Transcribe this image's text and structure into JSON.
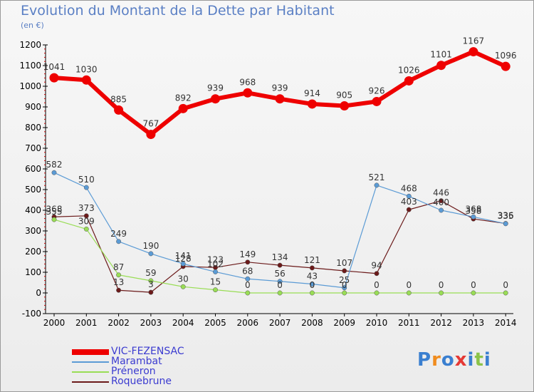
{
  "title": "Evolution du Montant de la Dette par Habitant",
  "unit": "(en €)",
  "logo_text": "Proxiti",
  "chart_data": {
    "type": "line",
    "x": [
      "2000",
      "2001",
      "2002",
      "2003",
      "2004",
      "2005",
      "2006",
      "2007",
      "2008",
      "2009",
      "2010",
      "2011",
      "2012",
      "2013",
      "2014"
    ],
    "ylim": [
      -100,
      1200
    ],
    "yticks": [
      "-100",
      "0",
      "100",
      "200",
      "300",
      "400",
      "500",
      "600",
      "700",
      "800",
      "900",
      "1000",
      "1100",
      "1200"
    ],
    "grid": false,
    "legend_position": "bottom-left",
    "series": [
      {
        "name": "VIC-FEZENSAC",
        "color": "#ee0000",
        "values": [
          1041,
          1030,
          885,
          767,
          892,
          939,
          968,
          939,
          914,
          905,
          926,
          1026,
          1101,
          1167,
          1096
        ]
      },
      {
        "name": "Marambat",
        "color": "#5b9bd5",
        "values": [
          582,
          510,
          249,
          190,
          141,
          102,
          68,
          56,
          43,
          25,
          521,
          468,
          400,
          368,
          335
        ]
      },
      {
        "name": "Préneron",
        "color": "#99dd55",
        "values": [
          355,
          309,
          87,
          59,
          30,
          15,
          0,
          0,
          0,
          0,
          0,
          0,
          0,
          0,
          0
        ]
      },
      {
        "name": "Roquebrune",
        "color": "#6b1a1a",
        "values": [
          368,
          373,
          13,
          3,
          128,
          123,
          149,
          134,
          121,
          107,
          94,
          403,
          446,
          358,
          336
        ]
      }
    ]
  }
}
